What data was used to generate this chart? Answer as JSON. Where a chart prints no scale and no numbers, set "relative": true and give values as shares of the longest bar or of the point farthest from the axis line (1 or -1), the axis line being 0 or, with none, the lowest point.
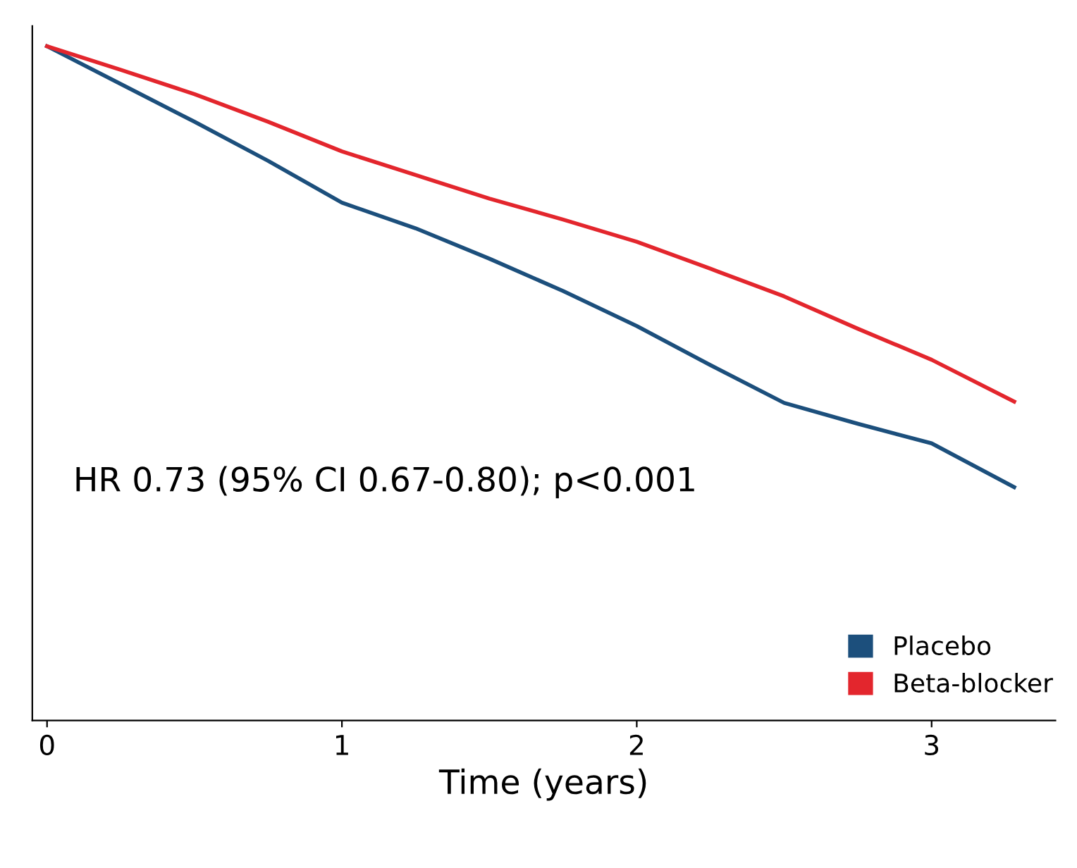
{
  "chart_data": {
    "type": "line",
    "relative": true,
    "xlabel": "Time (years)",
    "xlim": [
      -0.05,
      3.42
    ],
    "xticks": [
      0,
      1,
      2,
      3
    ],
    "legend": "bottom right",
    "marker": "none",
    "line_style": "solid",
    "annotations": [
      "HR 0.73 (95% CI 0.67-0.80); p<0.001"
    ],
    "series": [
      {
        "name": "Placebo",
        "color": "#1c4f7c",
        "x": [
          0,
          0.25,
          0.5,
          0.75,
          1.0,
          1.25,
          1.5,
          1.75,
          2.0,
          2.25,
          2.5,
          2.75,
          3.0,
          3.28
        ],
        "values": [
          1.0,
          0.944,
          0.888,
          0.83,
          0.768,
          0.73,
          0.685,
          0.637,
          0.585,
          0.527,
          0.471,
          0.44,
          0.411,
          0.346
        ]
      },
      {
        "name": "Beta-blocker",
        "color": "#e3262d",
        "x": [
          0,
          0.25,
          0.5,
          0.75,
          1.0,
          1.25,
          1.5,
          1.75,
          2.0,
          2.25,
          2.5,
          2.75,
          3.0,
          3.28
        ],
        "values": [
          1.0,
          0.965,
          0.929,
          0.888,
          0.844,
          0.809,
          0.774,
          0.743,
          0.71,
          0.67,
          0.629,
          0.581,
          0.535,
          0.473
        ]
      }
    ]
  }
}
